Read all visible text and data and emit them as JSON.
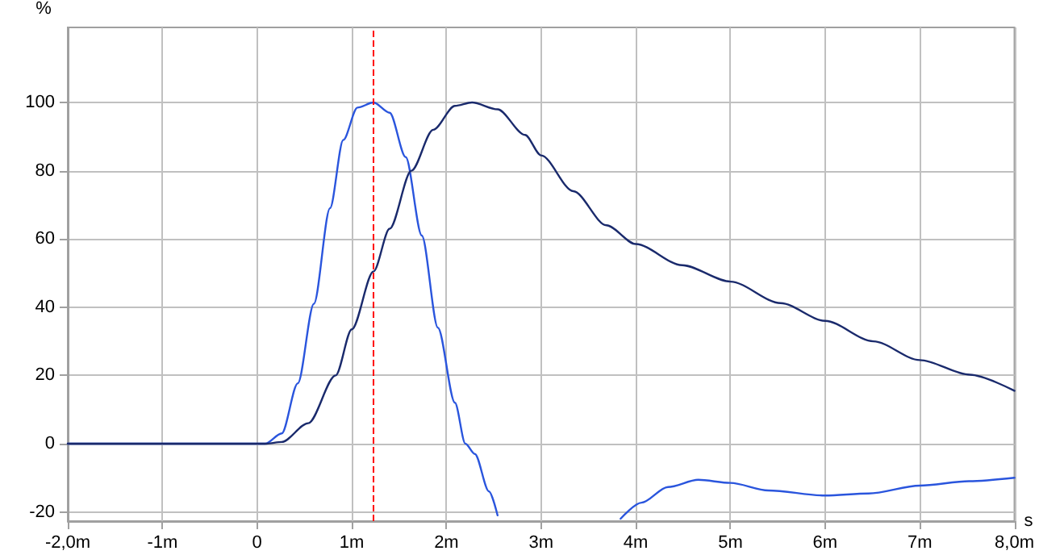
{
  "chart_data": {
    "type": "line",
    "xlabel": "s",
    "ylabel": "%",
    "xlim": [
      -2,
      8
    ],
    "ylim": [
      -22.7,
      122
    ],
    "xticks": [
      {
        "value": -2,
        "label": "-2,0m"
      },
      {
        "value": -1,
        "label": "-1m"
      },
      0,
      {
        "value": 1,
        "label": "1m"
      },
      {
        "value": 2,
        "label": "2m"
      },
      {
        "value": 3,
        "label": "3m"
      },
      {
        "value": 4,
        "label": "4m"
      },
      {
        "value": 5,
        "label": "5m"
      },
      {
        "value": 6,
        "label": "6m"
      },
      {
        "value": 7,
        "label": "7m"
      },
      {
        "value": 8,
        "label": "8,0m"
      }
    ],
    "yticks": [
      -20,
      0,
      20,
      40,
      60,
      80,
      100
    ],
    "grid": true,
    "marker": "none",
    "line_style": "solid",
    "ref_lines": [
      {
        "axis": "x",
        "value": 1.23,
        "label": null,
        "color": "#ff0000",
        "line_style": "dashed"
      }
    ],
    "series": [
      {
        "color": "#2a55dd",
        "x": [
          -2,
          0,
          0.086,
          0.26,
          0.43,
          0.6,
          0.77,
          0.91,
          1.06,
          1.23,
          1.4,
          1.57,
          1.74,
          1.91,
          2.09,
          2.2,
          2.3,
          2.45,
          2.54,
          3.2,
          3.84,
          4.06,
          4.34,
          4.66,
          5.0,
          5.4,
          6.0,
          6.46,
          7.0,
          7.52,
          8.0
        ],
        "values": [
          0,
          0,
          0,
          3,
          17.7,
          41,
          69,
          89,
          98.5,
          100,
          97,
          84,
          61,
          34,
          12,
          0,
          -3,
          -14,
          -21,
          null,
          -22,
          -17.3,
          -12.7,
          -10.6,
          -11.5,
          -13.7,
          -15.2,
          -14.6,
          -12.3,
          -11,
          -10
        ]
      },
      {
        "color": "#1a2a6c",
        "x": [
          -2,
          0,
          0.1,
          0.26,
          0.54,
          0.83,
          1.0,
          1.23,
          1.4,
          1.63,
          1.86,
          2.09,
          2.27,
          2.54,
          2.83,
          3.0,
          3.34,
          3.69,
          4.0,
          4.49,
          5.0,
          5.53,
          6.0,
          6.51,
          7.0,
          7.53,
          8.0
        ],
        "values": [
          0,
          0,
          0,
          0.5,
          6,
          20,
          33.5,
          50.5,
          63,
          80,
          92,
          99,
          100,
          98,
          90.5,
          84.5,
          74,
          64,
          58.5,
          52.3,
          47.5,
          41.2,
          36,
          30,
          24.5,
          20.2,
          15.5
        ]
      }
    ]
  }
}
